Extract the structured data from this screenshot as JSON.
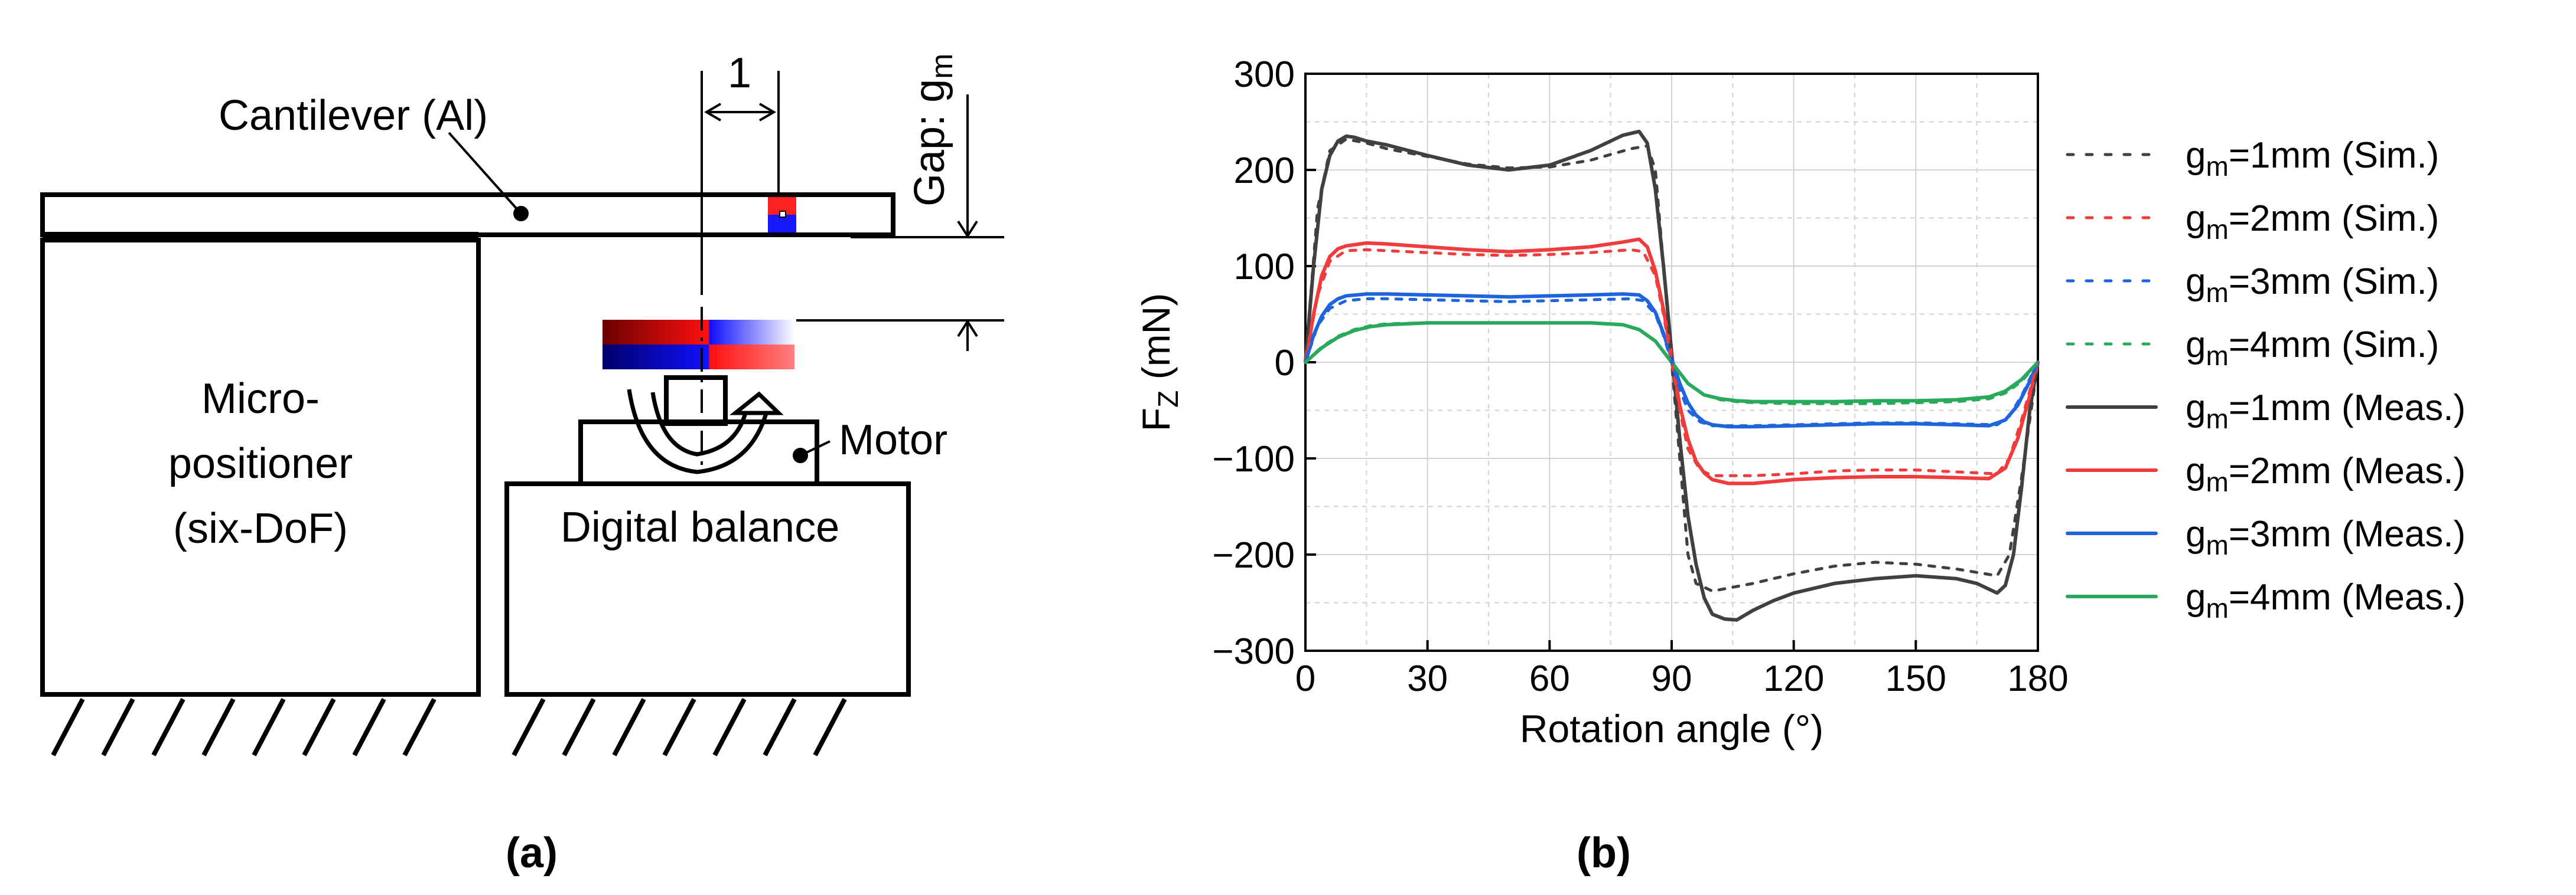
{
  "panel_a": {
    "cantilever_label": "Cantilever (Al)",
    "dimension_label": "1",
    "gap_label": "Gap: g",
    "gap_subscript": "m",
    "micro_line1": "Micro-",
    "micro_line2": "positioner",
    "micro_line3": "(six-DoF)",
    "motor_label": "Motor",
    "balance_label": "Digital balance",
    "caption": "(a)"
  },
  "panel_b": {
    "caption": "(b)"
  },
  "colors": {
    "black": "#404040",
    "red": "#f03c3c",
    "blue": "#1e64dc",
    "green": "#28aa5a"
  },
  "chart_data": {
    "type": "line",
    "title": "",
    "xlabel": "Rotation angle (°)",
    "ylabel_main": "F",
    "ylabel_sub": "Z",
    "ylabel_unit": " (mN)",
    "xlim": [
      0,
      180
    ],
    "ylim": [
      -300,
      300
    ],
    "xticks": [
      0,
      30,
      60,
      90,
      120,
      150,
      180
    ],
    "yticks": [
      300,
      200,
      100,
      0,
      -100,
      -200,
      -300
    ],
    "ytick_labels": [
      "300",
      "200",
      "100",
      "0",
      "−100",
      "−200",
      "−300"
    ],
    "grid": true,
    "legend_position": "right",
    "series": [
      {
        "name": "g=1mm (Sim.)",
        "label_pre": "g",
        "label_sub": "m",
        "label_post": "=1mm (Sim.)",
        "color": "#404040",
        "style": "dotted",
        "x": [
          0,
          3,
          6,
          10,
          15,
          20,
          30,
          40,
          50,
          60,
          70,
          80,
          84,
          86,
          88,
          90,
          92,
          94,
          96,
          100,
          110,
          120,
          130,
          140,
          150,
          160,
          170,
          173,
          176,
          180
        ],
        "y": [
          0,
          160,
          220,
          232,
          228,
          222,
          214,
          206,
          202,
          203,
          210,
          222,
          225,
          200,
          100,
          0,
          -100,
          -200,
          -230,
          -238,
          -230,
          -220,
          -212,
          -208,
          -210,
          -215,
          -222,
          -200,
          -120,
          0
        ]
      },
      {
        "name": "g=2mm (Sim.)",
        "label_pre": "g",
        "label_sub": "m",
        "label_post": "=2mm (Sim.)",
        "color": "#f03c3c",
        "style": "dotted",
        "x": [
          0,
          3,
          6,
          10,
          15,
          20,
          30,
          40,
          50,
          60,
          70,
          80,
          83,
          86,
          88,
          90,
          92,
          94,
          97,
          100,
          110,
          120,
          130,
          140,
          150,
          160,
          170,
          173,
          176,
          180
        ],
        "y": [
          0,
          70,
          105,
          116,
          117,
          116,
          114,
          112,
          111,
          112,
          114,
          117,
          115,
          90,
          50,
          0,
          -50,
          -90,
          -112,
          -118,
          -118,
          -116,
          -113,
          -112,
          -112,
          -114,
          -116,
          -100,
          -60,
          0
        ]
      },
      {
        "name": "g=3mm (Sim.)",
        "label_pre": "g",
        "label_sub": "m",
        "label_post": "=3mm (Sim.)",
        "color": "#1e64dc",
        "style": "dotted",
        "x": [
          0,
          3,
          6,
          10,
          15,
          20,
          30,
          40,
          50,
          60,
          70,
          80,
          83,
          86,
          88,
          90,
          92,
          94,
          97,
          100,
          110,
          120,
          130,
          140,
          150,
          160,
          170,
          173,
          176,
          180
        ],
        "y": [
          0,
          38,
          56,
          64,
          66,
          66,
          65,
          64,
          63,
          64,
          65,
          66,
          64,
          50,
          28,
          0,
          -28,
          -50,
          -62,
          -66,
          -66,
          -65,
          -64,
          -63,
          -63,
          -64,
          -65,
          -56,
          -35,
          0
        ]
      },
      {
        "name": "g=4mm (Sim.)",
        "label_pre": "g",
        "label_sub": "m",
        "label_post": "=4mm (Sim.)",
        "color": "#28aa5a",
        "style": "dotted",
        "x": [
          0,
          4,
          8,
          12,
          16,
          20,
          30,
          40,
          50,
          60,
          70,
          78,
          82,
          86,
          90,
          94,
          98,
          102,
          106,
          110,
          120,
          130,
          140,
          150,
          160,
          168,
          172,
          176,
          180
        ],
        "y": [
          0,
          16,
          27,
          34,
          38,
          40,
          41,
          41,
          41,
          41,
          41,
          39,
          34,
          22,
          0,
          -22,
          -34,
          -39,
          -41,
          -42,
          -43,
          -43,
          -43,
          -42,
          -41,
          -38,
          -32,
          -20,
          0
        ]
      },
      {
        "name": "g=1mm (Meas.)",
        "label_pre": "g",
        "label_sub": "m",
        "label_post": "=1mm (Meas.)",
        "color": "#404040",
        "style": "solid",
        "x": [
          0,
          2,
          4,
          6,
          8,
          10,
          12,
          15,
          20,
          30,
          40,
          50,
          60,
          70,
          78,
          82,
          84,
          86,
          88,
          90,
          92,
          94,
          96,
          98,
          100,
          103,
          106,
          110,
          115,
          120,
          130,
          140,
          150,
          160,
          165,
          168,
          170,
          172,
          174,
          176,
          178,
          180
        ],
        "y": [
          0,
          100,
          180,
          215,
          230,
          235,
          234,
          230,
          226,
          215,
          205,
          200,
          205,
          220,
          236,
          240,
          228,
          180,
          100,
          10,
          -80,
          -160,
          -210,
          -245,
          -262,
          -267,
          -268,
          -258,
          -248,
          -240,
          -230,
          -225,
          -222,
          -225,
          -230,
          -236,
          -240,
          -232,
          -200,
          -130,
          -50,
          0
        ]
      },
      {
        "name": "g=2mm (Meas.)",
        "label_pre": "g",
        "label_sub": "m",
        "label_post": "=2mm (Meas.)",
        "color": "#f03c3c",
        "style": "solid",
        "x": [
          0,
          2,
          4,
          6,
          8,
          10,
          15,
          20,
          30,
          40,
          50,
          60,
          70,
          78,
          82,
          84,
          86,
          88,
          90,
          92,
          94,
          96,
          98,
          100,
          104,
          110,
          120,
          130,
          140,
          150,
          160,
          168,
          172,
          175,
          178,
          180
        ],
        "y": [
          0,
          50,
          90,
          110,
          118,
          121,
          124,
          123,
          120,
          117,
          115,
          117,
          120,
          125,
          128,
          120,
          95,
          55,
          5,
          -45,
          -80,
          -103,
          -115,
          -122,
          -126,
          -126,
          -122,
          -120,
          -119,
          -119,
          -120,
          -121,
          -110,
          -80,
          -35,
          0
        ]
      },
      {
        "name": "g=3mm (Meas.)",
        "label_pre": "g",
        "label_sub": "m",
        "label_post": "=3mm (Meas.)",
        "color": "#1e64dc",
        "style": "solid",
        "x": [
          0,
          2,
          4,
          6,
          8,
          10,
          15,
          20,
          30,
          40,
          50,
          60,
          70,
          78,
          82,
          84,
          86,
          88,
          90,
          92,
          94,
          96,
          98,
          100,
          104,
          110,
          120,
          130,
          140,
          150,
          160,
          168,
          172,
          175,
          178,
          180
        ],
        "y": [
          0,
          28,
          48,
          60,
          66,
          69,
          71,
          71,
          70,
          69,
          68,
          69,
          70,
          71,
          70,
          64,
          52,
          30,
          4,
          -22,
          -42,
          -55,
          -62,
          -65,
          -67,
          -67,
          -66,
          -65,
          -64,
          -64,
          -65,
          -66,
          -60,
          -45,
          -20,
          0
        ]
      },
      {
        "name": "g=4mm (Meas.)",
        "label_pre": "g",
        "label_sub": "m",
        "label_post": "=4mm (Meas.)",
        "color": "#28aa5a",
        "style": "solid",
        "x": [
          0,
          4,
          8,
          12,
          16,
          20,
          30,
          40,
          50,
          60,
          70,
          78,
          82,
          86,
          90,
          94,
          98,
          102,
          106,
          110,
          120,
          130,
          140,
          150,
          160,
          168,
          172,
          176,
          180
        ],
        "y": [
          0,
          15,
          26,
          33,
          37,
          39,
          41,
          41,
          41,
          41,
          41,
          39,
          34,
          22,
          0,
          -22,
          -34,
          -38,
          -40,
          -41,
          -41,
          -41,
          -40,
          -40,
          -39,
          -36,
          -30,
          -18,
          0
        ]
      }
    ]
  }
}
